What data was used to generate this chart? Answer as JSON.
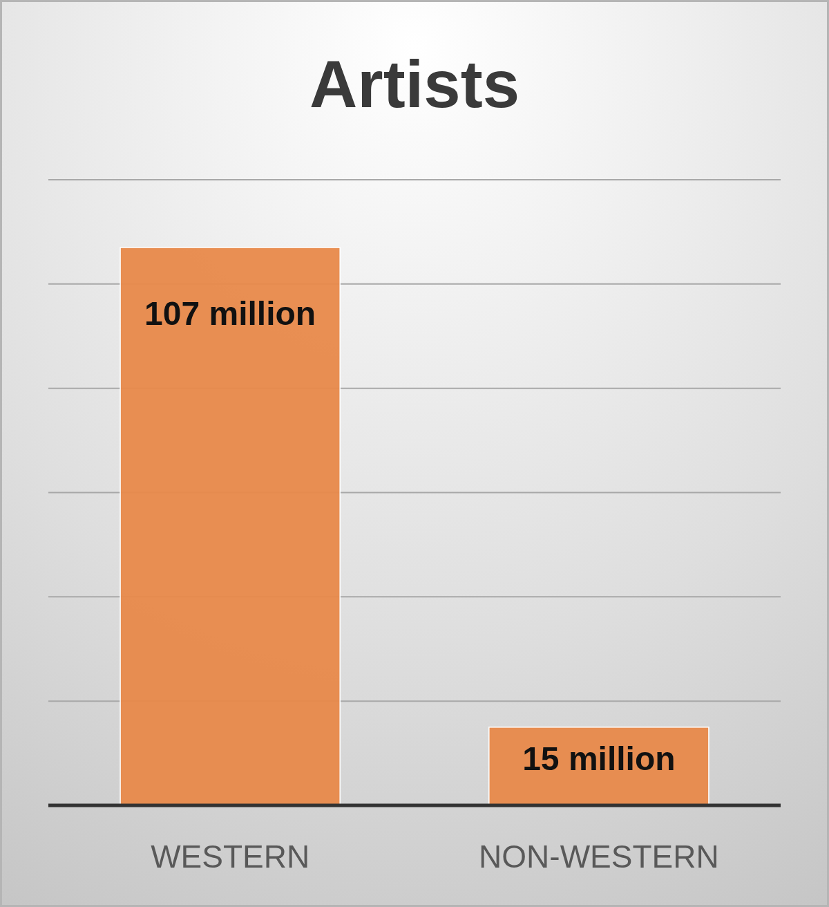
{
  "chart_data": {
    "type": "bar",
    "title": "Artists",
    "categories": [
      "WESTERN",
      "NON-WESTERN"
    ],
    "values": [
      107,
      15
    ],
    "value_labels": [
      "107 million",
      "15 million"
    ],
    "color": "#e8894a",
    "ylim": [
      0,
      120
    ],
    "yticks": [
      {
        "value": 0,
        "label": null
      },
      {
        "value": 20,
        "label": null
      },
      {
        "value": 40,
        "label": null
      },
      {
        "value": 60,
        "label": null
      },
      {
        "value": 80,
        "label": null
      },
      {
        "value": 100,
        "label": null
      },
      {
        "value": 120,
        "label": null
      }
    ],
    "grid": "y",
    "tick_labels": "x"
  }
}
